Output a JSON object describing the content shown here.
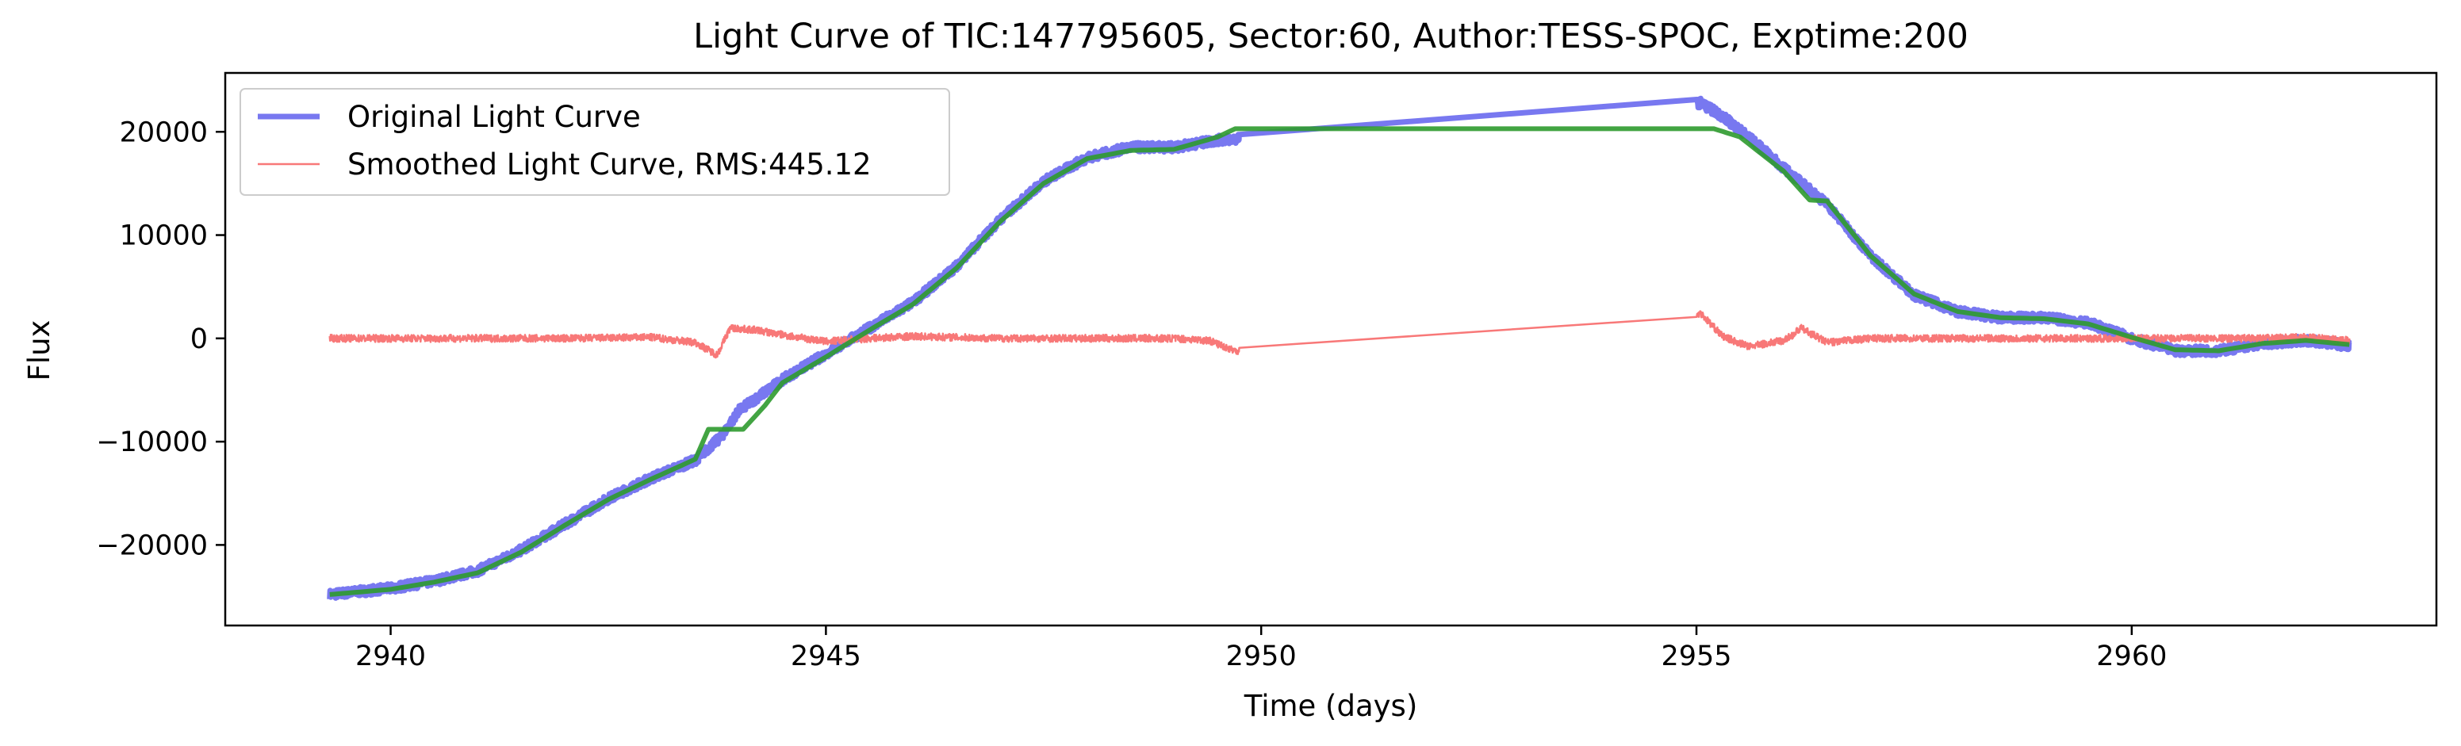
{
  "chart_data": {
    "type": "line",
    "title": "Light Curve of TIC:147795605, Sector:60, Author:TESS-SPOC, Exptime:200",
    "xlabel": "Time (days)",
    "ylabel": "Flux",
    "xlim": [
      2938.1,
      2963.5
    ],
    "ylim": [
      -27800,
      25700
    ],
    "xticks": [
      2940,
      2945,
      2950,
      2955,
      2960
    ],
    "yticks": [
      -20000,
      -10000,
      0,
      10000,
      20000
    ],
    "xtick_labels": [
      "2940",
      "2945",
      "2950",
      "2955",
      "2960"
    ],
    "ytick_labels": [
      "−20000",
      "−10000",
      "0",
      "10000",
      "20000"
    ],
    "grid": false,
    "legend_position": "upper-left",
    "series": [
      {
        "name": "Original Light Curve",
        "color": "#7878f0",
        "style": "thick-noisy",
        "x": [
          2939.3,
          2940.0,
          2940.5,
          2941.0,
          2941.5,
          2942.0,
          2942.5,
          2943.0,
          2943.5,
          2943.8,
          2944.0,
          2944.5,
          2945.0,
          2945.5,
          2946.0,
          2946.5,
          2947.0,
          2947.5,
          2948.0,
          2948.5,
          2949.0,
          2949.5,
          2949.7,
          2955.05,
          2955.3,
          2955.6,
          2956.0,
          2956.5,
          2957.0,
          2957.5,
          2958.0,
          2958.5,
          2959.0,
          2959.5,
          2960.0,
          2960.5,
          2961.0,
          2961.5,
          2962.0,
          2962.5
        ],
        "y": [
          -24800,
          -24200,
          -23500,
          -22500,
          -20500,
          -18000,
          -15500,
          -13500,
          -11800,
          -9500,
          -7000,
          -4000,
          -1500,
          1000,
          3500,
          7000,
          11500,
          15200,
          17500,
          18500,
          18500,
          19200,
          19300,
          22800,
          21500,
          19500,
          16500,
          13000,
          8000,
          4200,
          2600,
          2000,
          2000,
          1500,
          0,
          -1200,
          -1200,
          -500,
          -200,
          -700
        ]
      },
      {
        "name": "",
        "color": "#2e9a2e",
        "style": "thick-smooth",
        "x": [
          2939.3,
          2940.0,
          2940.5,
          2941.0,
          2941.5,
          2942.0,
          2942.5,
          2943.0,
          2943.5,
          2943.65,
          2944.05,
          2944.3,
          2944.5,
          2945.0,
          2945.5,
          2946.0,
          2946.5,
          2947.0,
          2947.5,
          2948.0,
          2948.5,
          2949.0,
          2949.5,
          2949.7,
          2955.2,
          2955.5,
          2956.0,
          2956.3,
          2956.5,
          2957.0,
          2957.5,
          2958.0,
          2958.5,
          2959.0,
          2959.5,
          2960.0,
          2960.5,
          2961.0,
          2961.5,
          2962.0,
          2962.5
        ],
        "y": [
          -24800,
          -24300,
          -23600,
          -22700,
          -20700,
          -18100,
          -15600,
          -13600,
          -11700,
          -8800,
          -8800,
          -6500,
          -4300,
          -1800,
          800,
          3300,
          6800,
          11300,
          15000,
          17400,
          18200,
          18300,
          19500,
          20300,
          20300,
          19500,
          16200,
          13400,
          13300,
          8000,
          4300,
          2600,
          2000,
          1900,
          1400,
          100,
          -1100,
          -1200,
          -500,
          -200,
          -600
        ]
      },
      {
        "name": "Smoothed Light Curve, RMS:445.12",
        "color": "#f87878",
        "style": "thin-noisy",
        "x": [
          2939.3,
          2940.0,
          2941.0,
          2942.0,
          2943.0,
          2943.5,
          2943.75,
          2943.9,
          2944.2,
          2944.6,
          2945.0,
          2945.5,
          2946.0,
          2947.0,
          2948.0,
          2949.0,
          2949.4,
          2949.7,
          2955.05,
          2955.3,
          2955.6,
          2956.0,
          2956.1,
          2956.2,
          2956.5,
          2957.0,
          2958.0,
          2959.0,
          2960.0,
          2960.5,
          2961.0,
          2961.5,
          2962.0,
          2962.5
        ],
        "y": [
          0,
          0,
          0,
          0,
          100,
          -400,
          -1600,
          1000,
          800,
          200,
          -300,
          0,
          200,
          0,
          0,
          0,
          -200,
          -1200,
          2400,
          200,
          -800,
          -200,
          300,
          1000,
          -400,
          0,
          0,
          0,
          0,
          0,
          0,
          0,
          100,
          -200
        ]
      }
    ]
  }
}
